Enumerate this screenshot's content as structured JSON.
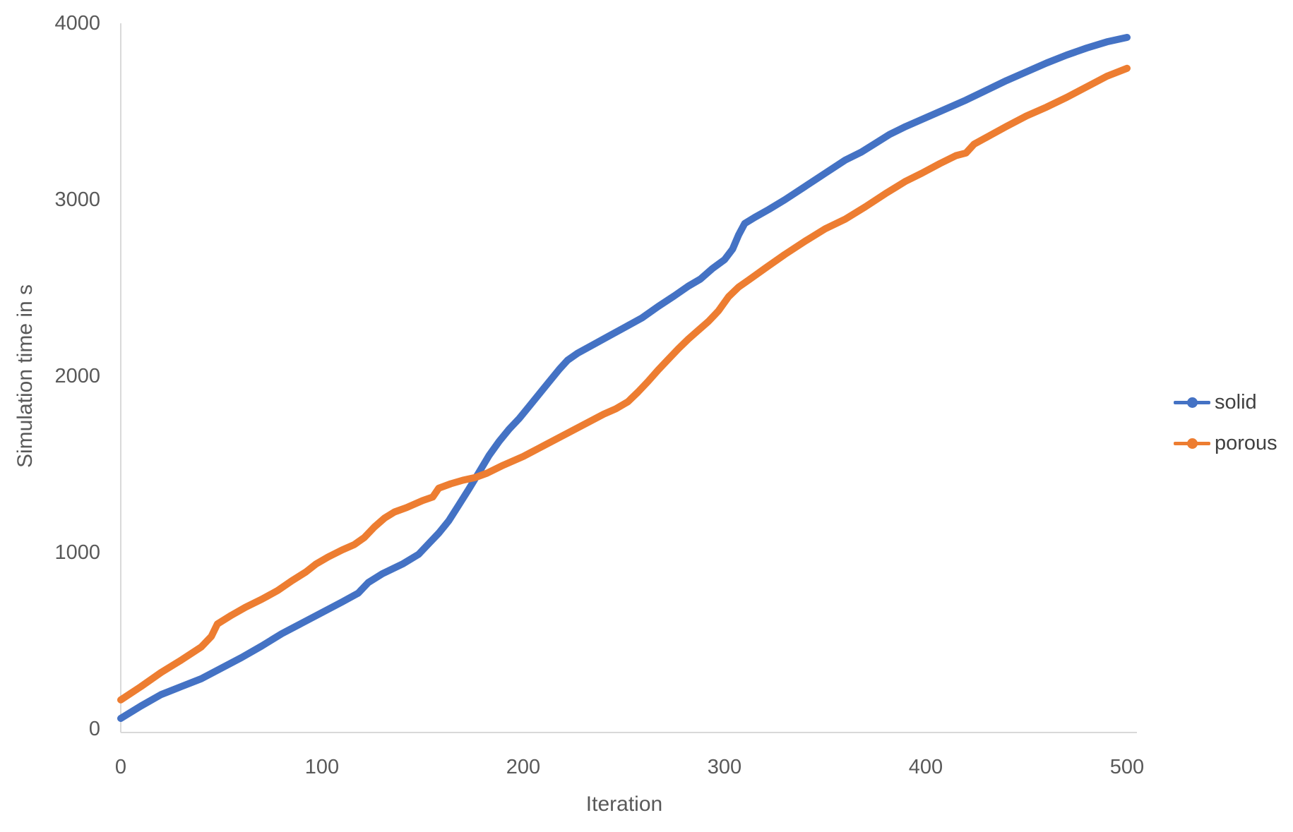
{
  "chart_data": {
    "type": "line",
    "title": "",
    "xlabel": "Iteration",
    "ylabel": "Simulation time in s",
    "xlim": [
      0,
      500
    ],
    "ylim": [
      0,
      4000
    ],
    "x_ticks": [
      0,
      100,
      200,
      300,
      400,
      500
    ],
    "y_ticks": [
      0,
      1000,
      2000,
      3000,
      4000
    ],
    "grid": false,
    "legend_position": "right",
    "axis_color": "#D9D9D9",
    "tick_label_color": "#595959",
    "series": [
      {
        "name": "solid",
        "color": "#4472C4",
        "marker": "circle",
        "points": [
          [
            0,
            60
          ],
          [
            10,
            130
          ],
          [
            20,
            195
          ],
          [
            30,
            240
          ],
          [
            40,
            285
          ],
          [
            50,
            345
          ],
          [
            60,
            405
          ],
          [
            70,
            470
          ],
          [
            80,
            540
          ],
          [
            90,
            600
          ],
          [
            100,
            660
          ],
          [
            110,
            720
          ],
          [
            118,
            770
          ],
          [
            123,
            830
          ],
          [
            130,
            880
          ],
          [
            140,
            935
          ],
          [
            148,
            990
          ],
          [
            153,
            1050
          ],
          [
            158,
            1110
          ],
          [
            163,
            1180
          ],
          [
            168,
            1270
          ],
          [
            173,
            1360
          ],
          [
            178,
            1455
          ],
          [
            183,
            1550
          ],
          [
            188,
            1630
          ],
          [
            193,
            1700
          ],
          [
            198,
            1760
          ],
          [
            203,
            1830
          ],
          [
            208,
            1900
          ],
          [
            213,
            1970
          ],
          [
            218,
            2040
          ],
          [
            222,
            2090
          ],
          [
            227,
            2130
          ],
          [
            235,
            2180
          ],
          [
            243,
            2230
          ],
          [
            251,
            2280
          ],
          [
            259,
            2330
          ],
          [
            267,
            2395
          ],
          [
            275,
            2455
          ],
          [
            282,
            2510
          ],
          [
            288,
            2550
          ],
          [
            294,
            2610
          ],
          [
            300,
            2660
          ],
          [
            304,
            2720
          ],
          [
            307,
            2800
          ],
          [
            310,
            2865
          ],
          [
            315,
            2900
          ],
          [
            322,
            2945
          ],
          [
            330,
            3000
          ],
          [
            340,
            3075
          ],
          [
            350,
            3150
          ],
          [
            360,
            3225
          ],
          [
            368,
            3270
          ],
          [
            375,
            3320
          ],
          [
            382,
            3370
          ],
          [
            390,
            3415
          ],
          [
            400,
            3465
          ],
          [
            410,
            3515
          ],
          [
            420,
            3565
          ],
          [
            430,
            3620
          ],
          [
            440,
            3675
          ],
          [
            450,
            3725
          ],
          [
            460,
            3775
          ],
          [
            470,
            3820
          ],
          [
            480,
            3860
          ],
          [
            490,
            3895
          ],
          [
            500,
            3920
          ]
        ]
      },
      {
        "name": "porous",
        "color": "#ED7D31",
        "marker": "circle",
        "points": [
          [
            0,
            165
          ],
          [
            10,
            240
          ],
          [
            20,
            320
          ],
          [
            30,
            390
          ],
          [
            40,
            465
          ],
          [
            45,
            525
          ],
          [
            48,
            595
          ],
          [
            55,
            645
          ],
          [
            62,
            690
          ],
          [
            70,
            735
          ],
          [
            78,
            785
          ],
          [
            85,
            840
          ],
          [
            92,
            890
          ],
          [
            97,
            935
          ],
          [
            103,
            975
          ],
          [
            110,
            1015
          ],
          [
            116,
            1045
          ],
          [
            121,
            1085
          ],
          [
            126,
            1145
          ],
          [
            131,
            1195
          ],
          [
            136,
            1230
          ],
          [
            142,
            1255
          ],
          [
            150,
            1295
          ],
          [
            155,
            1315
          ],
          [
            158,
            1365
          ],
          [
            164,
            1390
          ],
          [
            170,
            1410
          ],
          [
            176,
            1425
          ],
          [
            182,
            1450
          ],
          [
            190,
            1495
          ],
          [
            200,
            1545
          ],
          [
            210,
            1605
          ],
          [
            220,
            1665
          ],
          [
            230,
            1725
          ],
          [
            240,
            1785
          ],
          [
            246,
            1815
          ],
          [
            252,
            1855
          ],
          [
            257,
            1910
          ],
          [
            262,
            1970
          ],
          [
            267,
            2035
          ],
          [
            272,
            2095
          ],
          [
            277,
            2155
          ],
          [
            282,
            2210
          ],
          [
            287,
            2260
          ],
          [
            292,
            2310
          ],
          [
            297,
            2370
          ],
          [
            302,
            2450
          ],
          [
            307,
            2505
          ],
          [
            312,
            2545
          ],
          [
            320,
            2610
          ],
          [
            330,
            2690
          ],
          [
            340,
            2765
          ],
          [
            350,
            2835
          ],
          [
            360,
            2890
          ],
          [
            370,
            2960
          ],
          [
            380,
            3035
          ],
          [
            390,
            3105
          ],
          [
            398,
            3150
          ],
          [
            407,
            3205
          ],
          [
            415,
            3250
          ],
          [
            420,
            3265
          ],
          [
            424,
            3315
          ],
          [
            432,
            3365
          ],
          [
            440,
            3415
          ],
          [
            450,
            3475
          ],
          [
            460,
            3525
          ],
          [
            470,
            3580
          ],
          [
            480,
            3640
          ],
          [
            490,
            3700
          ],
          [
            500,
            3745
          ]
        ]
      }
    ]
  },
  "legend": {
    "items": [
      {
        "label": "solid",
        "color": "#4472C4"
      },
      {
        "label": "porous",
        "color": "#ED7D31"
      }
    ]
  }
}
